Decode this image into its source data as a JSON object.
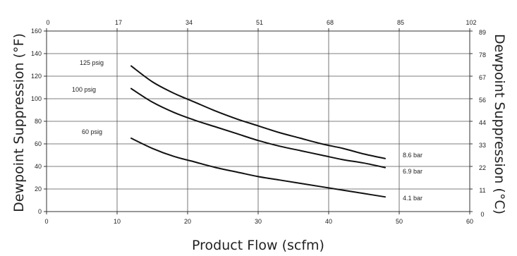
{
  "chart_data": {
    "type": "line",
    "xlabel": "Product Flow (scfm)",
    "ylabel": "Dewpoint Suppression (°F)",
    "y2label": "Dewpoint Suppression (°C)",
    "xlim": [
      0,
      60
    ],
    "ylim": [
      0,
      160
    ],
    "grid": true,
    "x_ticks": [
      "0",
      "10",
      "20",
      "30",
      "40",
      "50",
      "60"
    ],
    "y_ticks": [
      "0",
      "20",
      "40",
      "60",
      "80",
      "100",
      "120",
      "140",
      "160"
    ],
    "top_ticks": [
      "0",
      "17",
      "34",
      "51",
      "68",
      "85",
      "102"
    ],
    "right_ticks": [
      "0",
      "11",
      "22",
      "33",
      "44",
      "56",
      "67",
      "78",
      "89"
    ],
    "series": [
      {
        "name": "125 psig",
        "name_right": "8.6 bar",
        "x": [
          12,
          15,
          18,
          21,
          24,
          27,
          30,
          33,
          36,
          39,
          42,
          45,
          48
        ],
        "y": [
          129,
          115,
          105,
          97,
          89,
          82,
          76,
          70,
          65,
          60,
          56,
          51,
          47
        ]
      },
      {
        "name": "100 psig",
        "name_right": "6.9 bar",
        "x": [
          12,
          15,
          18,
          21,
          24,
          27,
          30,
          33,
          36,
          39,
          42,
          45,
          48
        ],
        "y": [
          109,
          97,
          88,
          81,
          75,
          69,
          63,
          58,
          54,
          50,
          46,
          43,
          39
        ]
      },
      {
        "name": "60 psig",
        "name_right": "4.1 bar",
        "x": [
          12,
          15,
          18,
          21,
          24,
          27,
          30,
          33,
          36,
          39,
          42,
          45,
          48
        ],
        "y": [
          65,
          56,
          49,
          44,
          39,
          35,
          31,
          28,
          25,
          22,
          19,
          16,
          13
        ]
      }
    ]
  }
}
